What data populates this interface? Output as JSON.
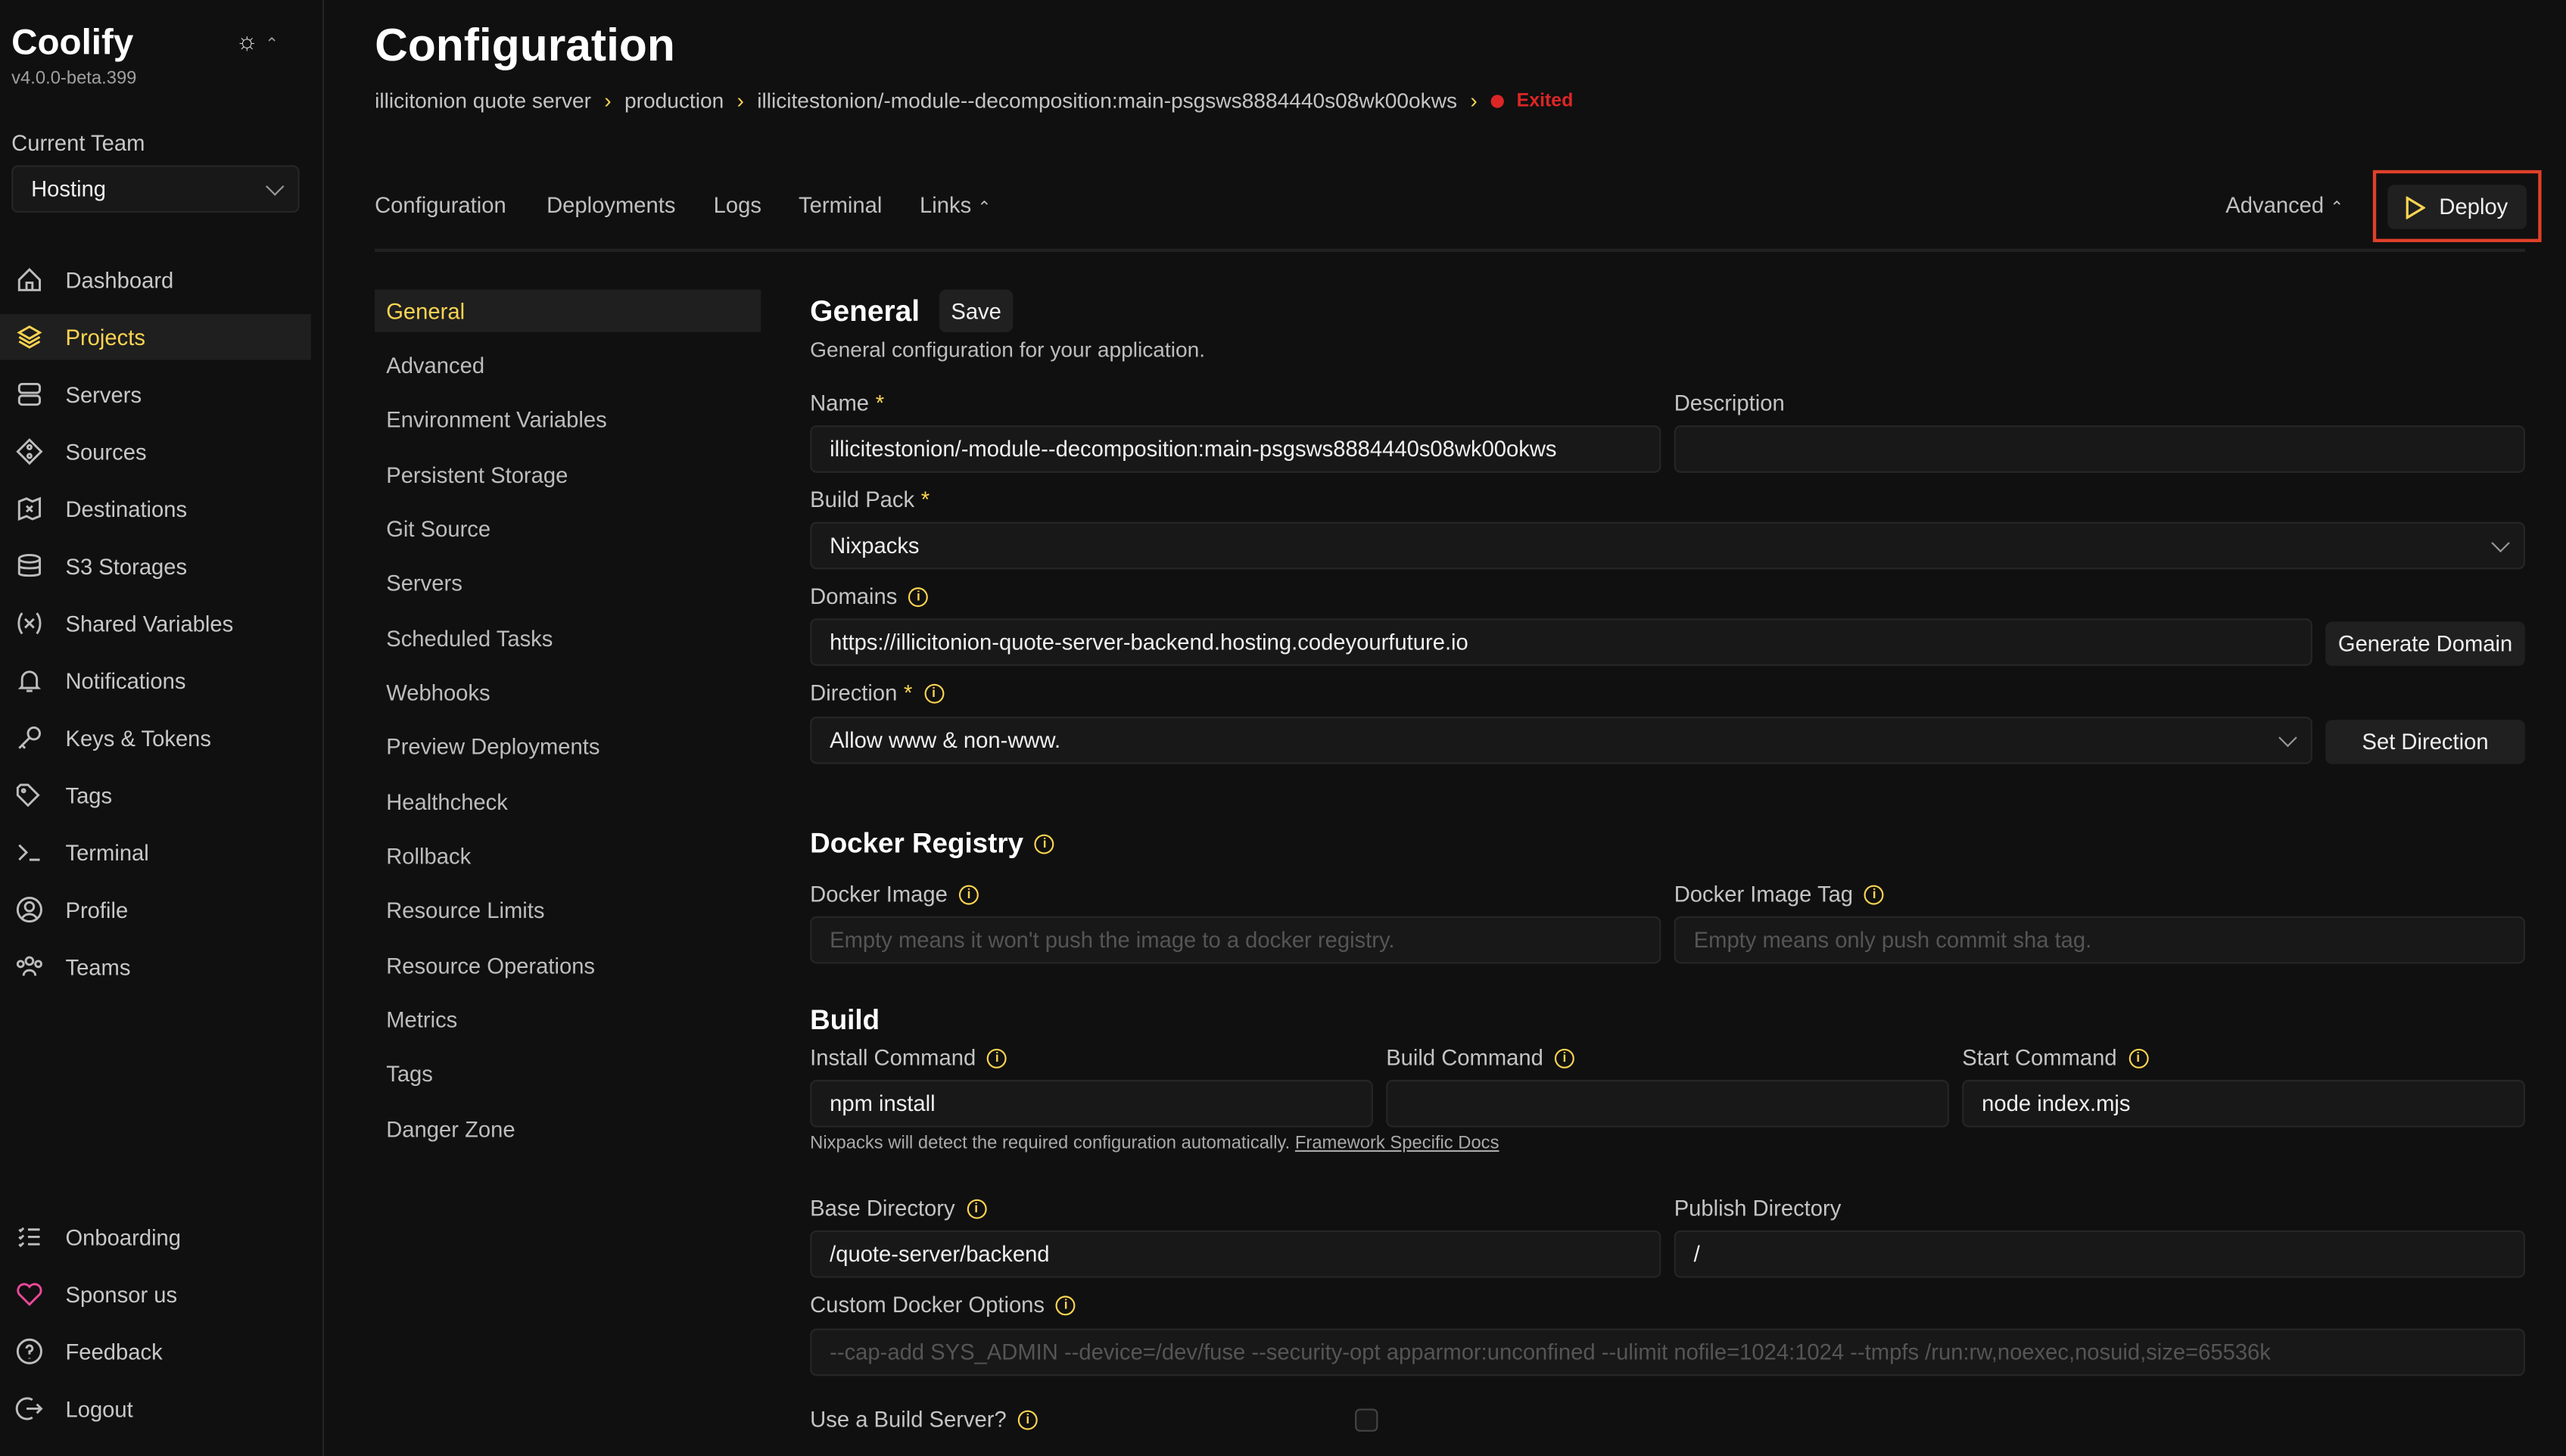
{
  "sidebar": {
    "brand": "Coolify",
    "version": "v4.0.0-beta.399",
    "team_label": "Current Team",
    "team_value": "Hosting",
    "items": [
      {
        "label": "Dashboard",
        "icon": "home-icon"
      },
      {
        "label": "Projects",
        "icon": "layers-icon",
        "active": true
      },
      {
        "label": "Servers",
        "icon": "server-icon"
      },
      {
        "label": "Sources",
        "icon": "git-icon"
      },
      {
        "label": "Destinations",
        "icon": "destination-icon"
      },
      {
        "label": "S3 Storages",
        "icon": "database-icon"
      },
      {
        "label": "Shared Variables",
        "icon": "variable-icon"
      },
      {
        "label": "Notifications",
        "icon": "bell-icon"
      },
      {
        "label": "Keys & Tokens",
        "icon": "key-icon"
      },
      {
        "label": "Tags",
        "icon": "tag-icon"
      },
      {
        "label": "Terminal",
        "icon": "terminal-icon"
      },
      {
        "label": "Profile",
        "icon": "user-icon"
      },
      {
        "label": "Teams",
        "icon": "users-icon"
      }
    ],
    "bottom_items": [
      {
        "label": "Onboarding",
        "icon": "list-icon"
      },
      {
        "label": "Sponsor us",
        "icon": "heart-icon"
      },
      {
        "label": "Feedback",
        "icon": "help-icon"
      },
      {
        "label": "Logout",
        "icon": "logout-icon"
      }
    ]
  },
  "header": {
    "title": "Configuration",
    "breadcrumb": [
      "illicitonion quote server",
      "production",
      "illicitestonion/-module--decomposition:main-psgsws8884440s08wk00okws"
    ],
    "status": "Exited",
    "tabs": [
      "Configuration",
      "Deployments",
      "Logs",
      "Terminal",
      "Links"
    ],
    "advanced": "Advanced",
    "deploy": "Deploy"
  },
  "subnav": [
    "General",
    "Advanced",
    "Environment Variables",
    "Persistent Storage",
    "Git Source",
    "Servers",
    "Scheduled Tasks",
    "Webhooks",
    "Preview Deployments",
    "Healthcheck",
    "Rollback",
    "Resource Limits",
    "Resource Operations",
    "Metrics",
    "Tags",
    "Danger Zone"
  ],
  "form": {
    "title": "General",
    "save": "Save",
    "description": "General configuration for your application.",
    "name_label": "Name",
    "name_value": "illicitestonion/-module--decomposition:main-psgsws8884440s08wk00okws",
    "desc_label": "Description",
    "desc_value": "",
    "buildpack_label": "Build Pack",
    "buildpack_value": "Nixpacks",
    "domains_label": "Domains",
    "domains_value": "https://illicitonion-quote-server-backend.hosting.codeyourfuture.io",
    "generate_domain": "Generate Domain",
    "direction_label": "Direction",
    "direction_value": "Allow www & non-www.",
    "set_direction": "Set Direction",
    "docker_registry": "Docker Registry",
    "docker_image_label": "Docker Image",
    "docker_image_placeholder": "Empty means it won't push the image to a docker registry.",
    "docker_tag_label": "Docker Image Tag",
    "docker_tag_placeholder": "Empty means only push commit sha tag.",
    "build": "Build",
    "install_label": "Install Command",
    "install_value": "npm install",
    "build_label": "Build Command",
    "build_value": "",
    "start_label": "Start Command",
    "start_value": "node index.mjs",
    "helper": "Nixpacks will detect the required configuration automatically.",
    "helper_link": "Framework Specific Docs",
    "base_label": "Base Directory",
    "base_value": "/quote-server/backend",
    "publish_label": "Publish Directory",
    "publish_value": "/",
    "custom_label": "Custom Docker Options",
    "custom_placeholder": "--cap-add SYS_ADMIN --device=/dev/fuse --security-opt apparmor:unconfined --ulimit nofile=1024:1024 --tmpfs /run:rw,noexec,nosuid,size=65536k",
    "build_server_label": "Use a Build Server?",
    "build_server_checked": false
  },
  "colors": {
    "accent": "#fcd452",
    "status_exited": "#dc2626",
    "highlight_box": "#e0402a"
  }
}
